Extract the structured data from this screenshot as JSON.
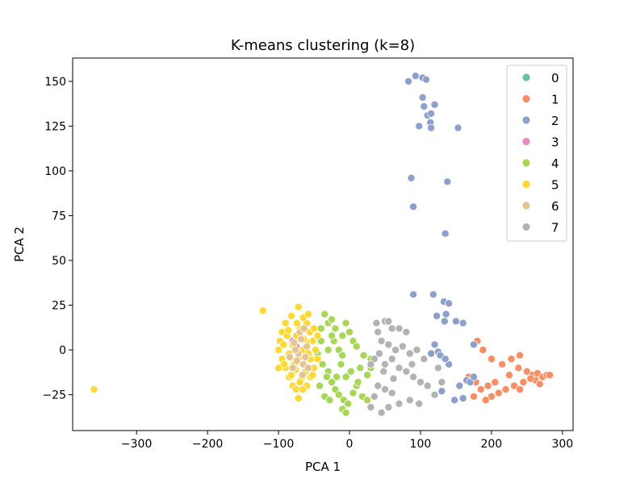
{
  "chart_data": {
    "type": "scatter",
    "title": "K-means clustering (k=8)",
    "xlabel": "PCA 1",
    "ylabel": "PCA 2",
    "xlim": [
      -390,
      315
    ],
    "ylim": [
      -45,
      163
    ],
    "xticks": [
      -300,
      -200,
      -100,
      0,
      100,
      200,
      300
    ],
    "yticks": [
      -25,
      0,
      25,
      50,
      75,
      100,
      125,
      150
    ],
    "xtick_labels": [
      "−300",
      "−200",
      "−100",
      "0",
      "100",
      "200",
      "300"
    ],
    "ytick_labels": [
      "−25",
      "0",
      "25",
      "50",
      "75",
      "100",
      "125",
      "150"
    ],
    "grid": false,
    "legend_position": "top-right",
    "series": [
      {
        "name": "0",
        "color": "#66c2a5",
        "points": []
      },
      {
        "name": "1",
        "color": "#fc8d62",
        "points": [
          [
            180,
            5
          ],
          [
            188,
            0
          ],
          [
            200,
            -5
          ],
          [
            215,
            -8
          ],
          [
            228,
            -5
          ],
          [
            240,
            -3
          ],
          [
            250,
            -12
          ],
          [
            258,
            -14
          ],
          [
            265,
            -13
          ],
          [
            272,
            -15
          ],
          [
            278,
            -14
          ],
          [
            262,
            -17
          ],
          [
            245,
            -18
          ],
          [
            232,
            -20
          ],
          [
            220,
            -22
          ],
          [
            210,
            -24
          ],
          [
            200,
            -26
          ],
          [
            192,
            -28
          ],
          [
            185,
            -22
          ],
          [
            178,
            -18
          ],
          [
            168,
            -15
          ],
          [
            175,
            -26
          ],
          [
            195,
            -20
          ],
          [
            225,
            -14
          ],
          [
            238,
            -10
          ],
          [
            268,
            -19
          ],
          [
            282,
            -14
          ],
          [
            205,
            -18
          ],
          [
            240,
            -22
          ],
          [
            255,
            -16
          ]
        ]
      },
      {
        "name": "2",
        "color": "#8da0cb",
        "points": [
          [
            83,
            150
          ],
          [
            93,
            153
          ],
          [
            103,
            152
          ],
          [
            108,
            151
          ],
          [
            103,
            141
          ],
          [
            120,
            137
          ],
          [
            105,
            136
          ],
          [
            110,
            131
          ],
          [
            115,
            132
          ],
          [
            114,
            127
          ],
          [
            98,
            125
          ],
          [
            115,
            124
          ],
          [
            153,
            124
          ],
          [
            87,
            96
          ],
          [
            138,
            94
          ],
          [
            90,
            80
          ],
          [
            135,
            65
          ],
          [
            90,
            31
          ],
          [
            118,
            31
          ],
          [
            133,
            27
          ],
          [
            140,
            26
          ],
          [
            136,
            20
          ],
          [
            123,
            19
          ],
          [
            160,
            15
          ],
          [
            134,
            16
          ],
          [
            150,
            16
          ],
          [
            175,
            3
          ],
          [
            120,
            3
          ],
          [
            125,
            -1
          ],
          [
            128,
            -3
          ],
          [
            115,
            -2
          ],
          [
            140,
            -8
          ],
          [
            165,
            -17
          ],
          [
            170,
            -18
          ],
          [
            155,
            -20
          ],
          [
            148,
            -28
          ],
          [
            160,
            -27
          ],
          [
            130,
            -23
          ],
          [
            135,
            -5
          ],
          [
            175,
            -15
          ]
        ]
      },
      {
        "name": "3",
        "color": "#e78ac3",
        "points": [
          [
            -80,
            5
          ],
          [
            -75,
            2
          ],
          [
            -70,
            8
          ]
        ]
      },
      {
        "name": "4",
        "color": "#a6d854",
        "points": [
          [
            -35,
            20
          ],
          [
            -30,
            15
          ],
          [
            -25,
            17
          ],
          [
            -20,
            12
          ],
          [
            -10,
            8
          ],
          [
            -5,
            15
          ],
          [
            0,
            10
          ],
          [
            5,
            5
          ],
          [
            10,
            2
          ],
          [
            -15,
            0
          ],
          [
            -40,
            5
          ],
          [
            -45,
            -2
          ],
          [
            -38,
            -8
          ],
          [
            -30,
            -12
          ],
          [
            -25,
            -18
          ],
          [
            -20,
            -22
          ],
          [
            -15,
            -25
          ],
          [
            -8,
            -28
          ],
          [
            -2,
            -30
          ],
          [
            5,
            -24
          ],
          [
            10,
            -20
          ],
          [
            18,
            -26
          ],
          [
            25,
            -28
          ],
          [
            30,
            -5
          ],
          [
            15,
            -10
          ],
          [
            -42,
            -20
          ],
          [
            -35,
            -26
          ],
          [
            -28,
            -28
          ],
          [
            -10,
            -33
          ],
          [
            -5,
            -35
          ],
          [
            20,
            -3
          ],
          [
            -30,
            0
          ],
          [
            -22,
            5
          ],
          [
            -12,
            -8
          ],
          [
            -5,
            -15
          ],
          [
            2,
            -12
          ],
          [
            12,
            -18
          ],
          [
            -18,
            -15
          ],
          [
            -32,
            -15
          ],
          [
            -40,
            12
          ],
          [
            -25,
            8
          ],
          [
            -10,
            -3
          ],
          [
            30,
            -10
          ],
          [
            25,
            -14
          ]
        ]
      },
      {
        "name": "5",
        "color": "#ffd92f",
        "points": [
          [
            -360,
            -22
          ],
          [
            -122,
            22
          ],
          [
            -72,
            24
          ],
          [
            -82,
            19
          ],
          [
            -90,
            15
          ],
          [
            -95,
            10
          ],
          [
            -98,
            5
          ],
          [
            -100,
            0
          ],
          [
            -95,
            -5
          ],
          [
            -90,
            -10
          ],
          [
            -85,
            -15
          ],
          [
            -80,
            -20
          ],
          [
            -75,
            -22
          ],
          [
            -72,
            -27
          ],
          [
            -60,
            -20
          ],
          [
            -55,
            -15
          ],
          [
            -50,
            -10
          ],
          [
            -45,
            -5
          ],
          [
            -48,
            0
          ],
          [
            -52,
            5
          ],
          [
            -56,
            10
          ],
          [
            -60,
            15
          ],
          [
            -65,
            18
          ],
          [
            -70,
            12
          ],
          [
            -75,
            8
          ],
          [
            -80,
            3
          ],
          [
            -85,
            -2
          ],
          [
            -78,
            -8
          ],
          [
            -70,
            -4
          ],
          [
            -65,
            0
          ],
          [
            -60,
            4
          ],
          [
            -55,
            -5
          ],
          [
            -62,
            -12
          ],
          [
            -68,
            -16
          ],
          [
            -88,
            8
          ],
          [
            -92,
            -8
          ],
          [
            -58,
            20
          ],
          [
            -50,
            12
          ],
          [
            -45,
            8
          ],
          [
            -100,
            -10
          ],
          [
            -93,
            3
          ],
          [
            -82,
            -14
          ],
          [
            -66,
            -22
          ],
          [
            -74,
            15
          ],
          [
            -64,
            6
          ],
          [
            -58,
            -2
          ],
          [
            -52,
            -14
          ],
          [
            -86,
            11
          ],
          [
            -76,
            -11
          ],
          [
            -70,
            -18
          ]
        ]
      },
      {
        "name": "6",
        "color": "#e5c494",
        "points": [
          [
            -72,
            -2
          ],
          [
            -65,
            -8
          ],
          [
            -78,
            4
          ],
          [
            -60,
            2
          ],
          [
            -68,
            6
          ],
          [
            -74,
            -6
          ],
          [
            -62,
            -4
          ],
          [
            -80,
            -10
          ],
          [
            -70,
            10
          ],
          [
            -66,
            -14
          ],
          [
            -76,
            0
          ],
          [
            -58,
            -10
          ],
          [
            -84,
            -4
          ],
          [
            -64,
            12
          ]
        ]
      },
      {
        "name": "7",
        "color": "#b3b3b3",
        "points": [
          [
            38,
            15
          ],
          [
            50,
            16
          ],
          [
            55,
            16
          ],
          [
            40,
            10
          ],
          [
            60,
            12
          ],
          [
            70,
            12
          ],
          [
            80,
            10
          ],
          [
            45,
            5
          ],
          [
            55,
            3
          ],
          [
            65,
            0
          ],
          [
            75,
            2
          ],
          [
            85,
            -2
          ],
          [
            95,
            0
          ],
          [
            35,
            -5
          ],
          [
            50,
            -8
          ],
          [
            60,
            -5
          ],
          [
            70,
            -10
          ],
          [
            80,
            -12
          ],
          [
            90,
            -15
          ],
          [
            100,
            -18
          ],
          [
            110,
            -20
          ],
          [
            40,
            -20
          ],
          [
            50,
            -22
          ],
          [
            60,
            -24
          ],
          [
            35,
            -26
          ],
          [
            30,
            -32
          ],
          [
            45,
            -35
          ],
          [
            55,
            -32
          ],
          [
            70,
            -30
          ],
          [
            85,
            -28
          ],
          [
            98,
            -30
          ],
          [
            120,
            -25
          ],
          [
            130,
            -18
          ],
          [
            125,
            -10
          ],
          [
            105,
            -5
          ],
          [
            88,
            -8
          ],
          [
            62,
            -16
          ],
          [
            48,
            -12
          ],
          [
            42,
            -2
          ],
          [
            30,
            -8
          ]
        ]
      }
    ]
  }
}
